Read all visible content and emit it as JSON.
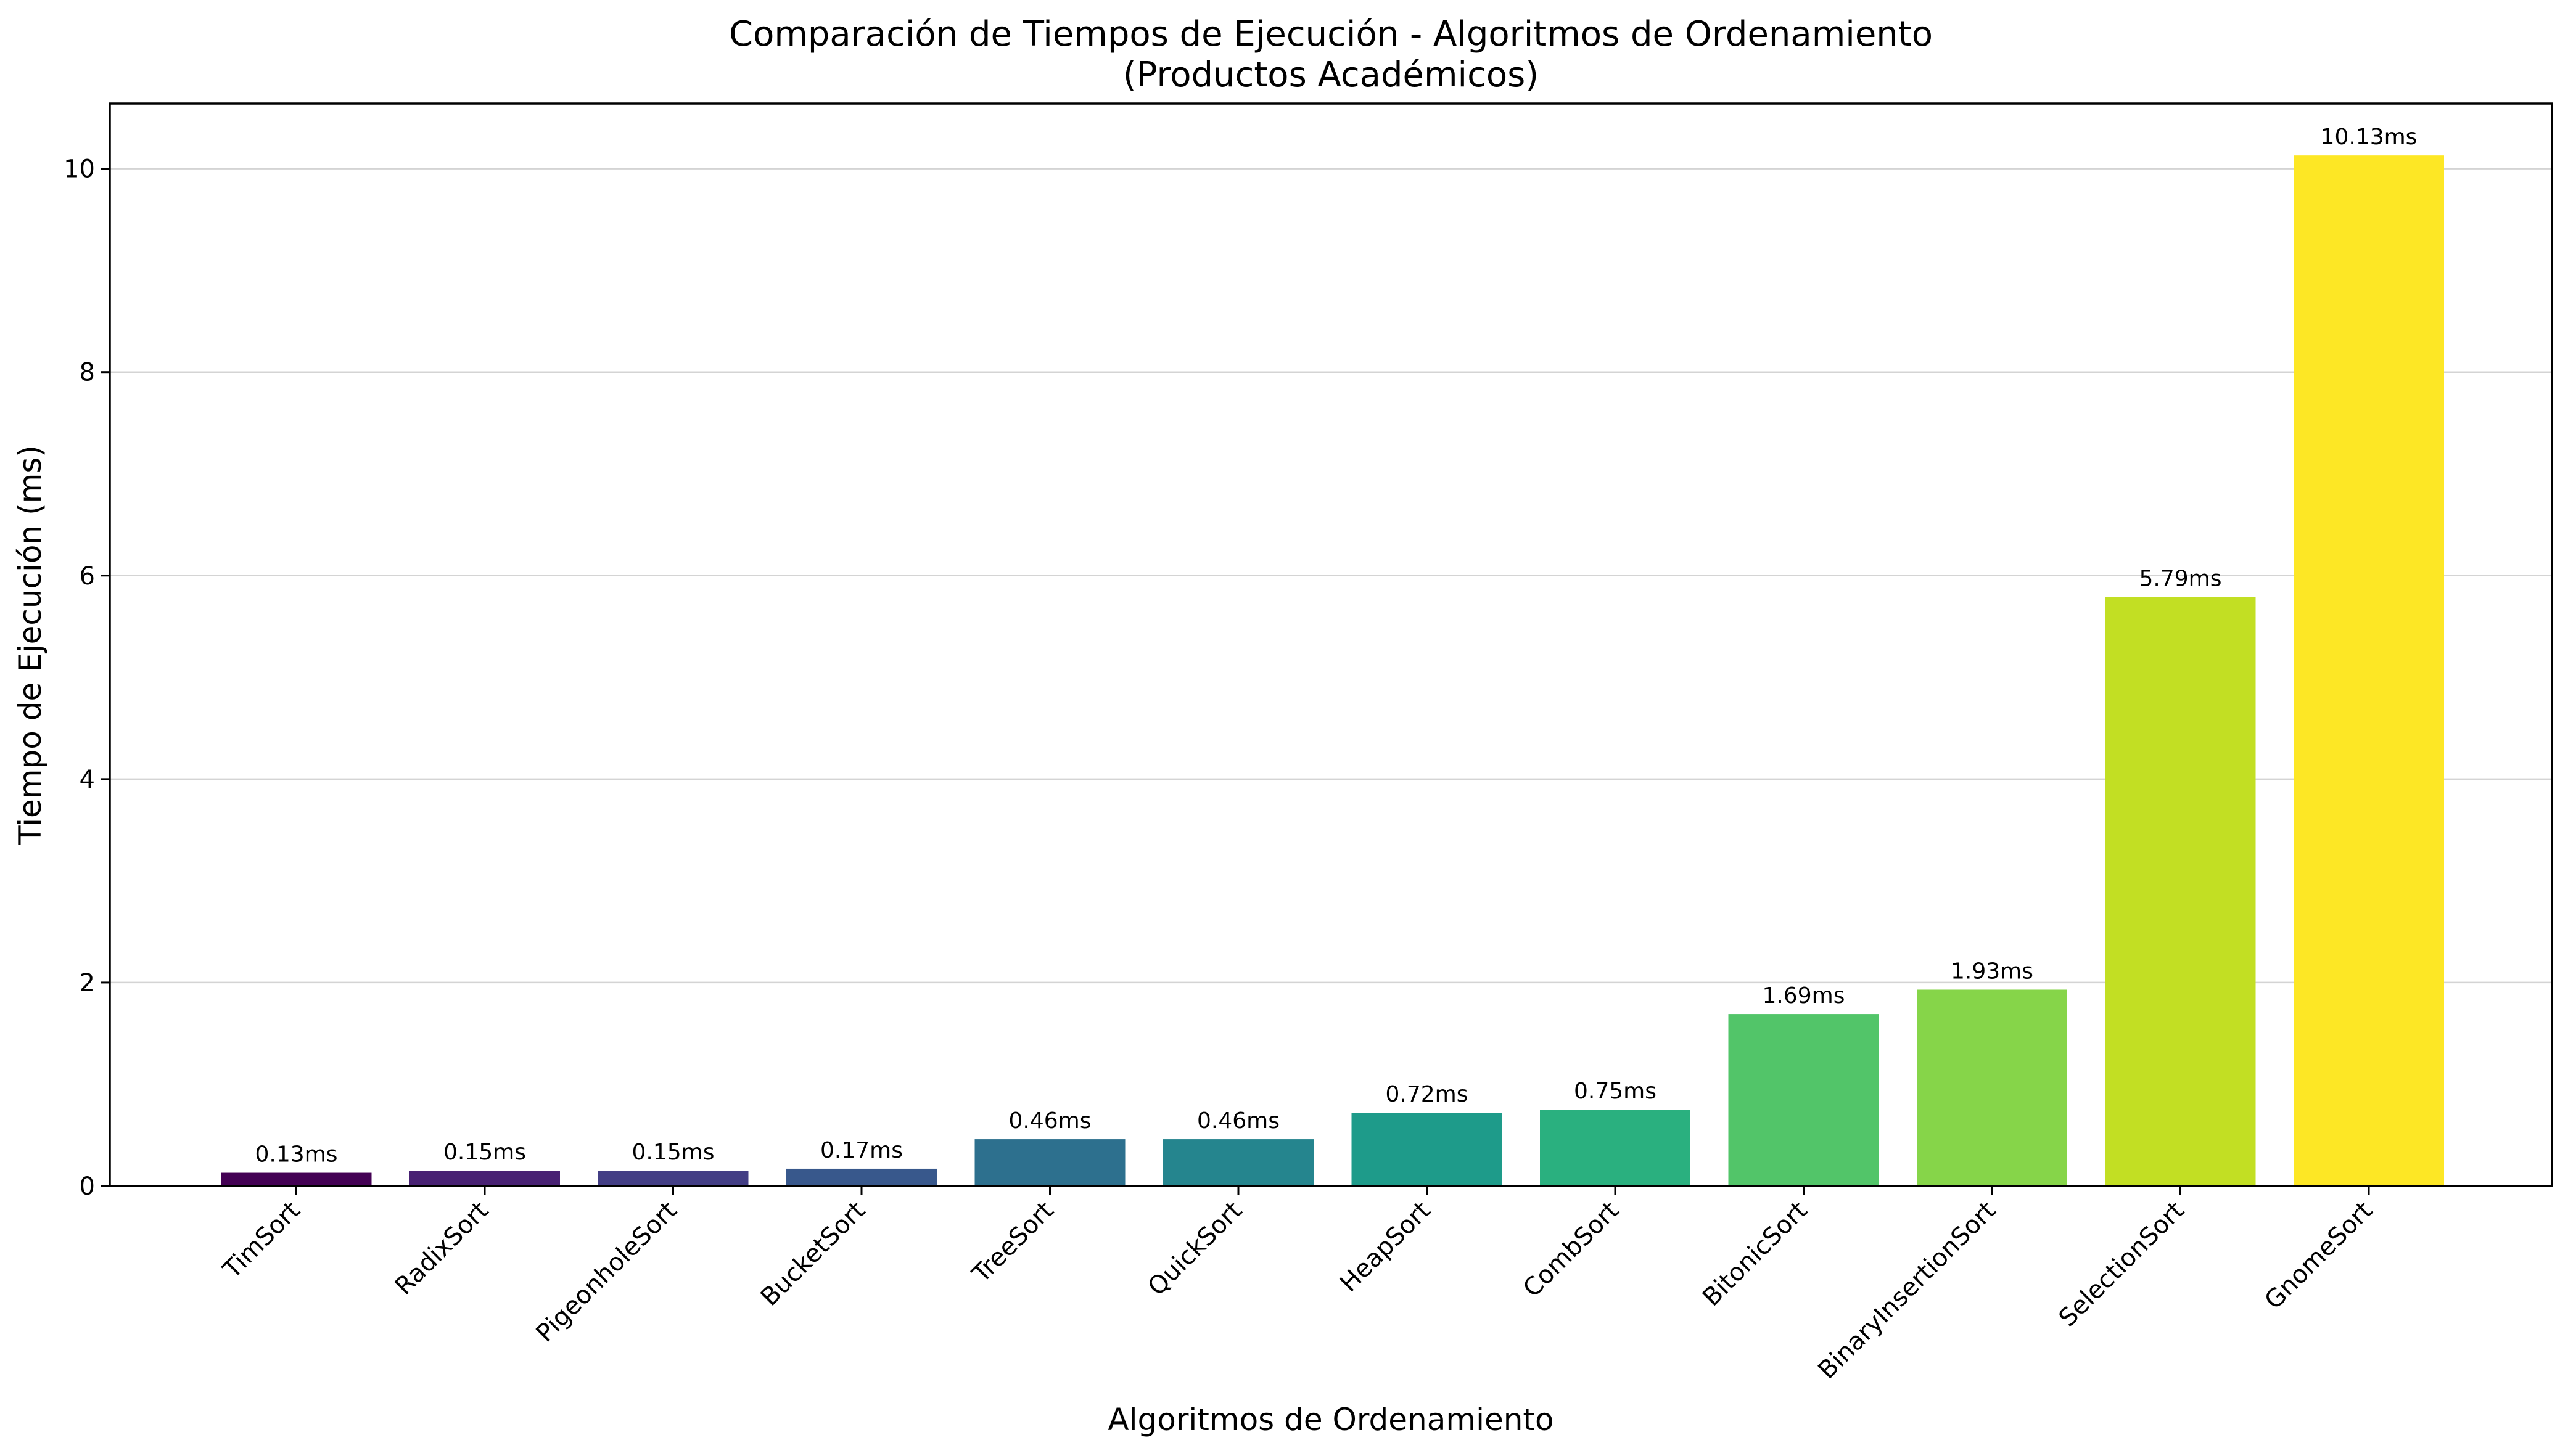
{
  "chart_data": {
    "type": "bar",
    "title": "Comparación de Tiempos de Ejecución - Algoritmos de Ordenamiento",
    "subtitle": "(Productos Académicos)",
    "xlabel": "Algoritmos de Ordenamiento",
    "ylabel": "Tiempo de Ejecución (ms)",
    "ylim": [
      0,
      10.64
    ],
    "yticks": [
      0,
      2,
      4,
      6,
      8,
      10
    ],
    "grid": "y",
    "categories": [
      "TimSort",
      "RadixSort",
      "PigeonholeSort",
      "BucketSort",
      "TreeSort",
      "QuickSort",
      "HeapSort",
      "CombSort",
      "BitonicSort",
      "BinaryInsertionSort",
      "SelectionSort",
      "GnomeSort"
    ],
    "values": [
      0.13,
      0.15,
      0.15,
      0.17,
      0.46,
      0.46,
      0.72,
      0.75,
      1.69,
      1.93,
      5.79,
      10.13
    ],
    "data_labels": [
      "0.13ms",
      "0.15ms",
      "0.15ms",
      "0.17ms",
      "0.46ms",
      "0.46ms",
      "0.72ms",
      "0.75ms",
      "1.69ms",
      "1.93ms",
      "5.79ms",
      "10.13ms"
    ],
    "colors": [
      "#440154",
      "#482173",
      "#433e85",
      "#38588c",
      "#2d708e",
      "#25858e",
      "#1e9b8a",
      "#2ab07f",
      "#52c569",
      "#86d549",
      "#c2df23",
      "#fde725"
    ]
  }
}
